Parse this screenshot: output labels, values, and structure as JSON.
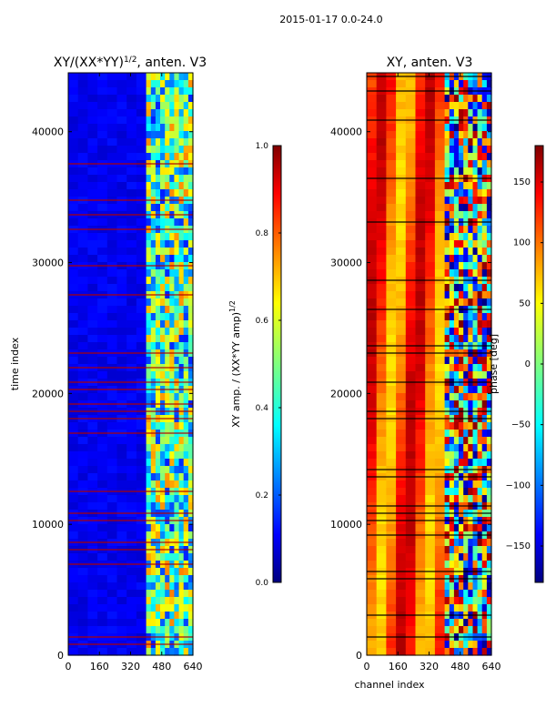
{
  "suptitle": "2015-01-17 0.0-24.0",
  "chart_data": [
    {
      "type": "heatmap",
      "title": "XY/(XX*YY)^{1/2}, anten. V3",
      "title_main": "XY/(XX*YY)",
      "title_sup": "1/2",
      "title_tail": ", anten. V3",
      "xlabel": "",
      "ylabel": "time index",
      "xlim": [
        0,
        640
      ],
      "ylim": [
        0,
        44500
      ],
      "xticks": [
        0,
        160,
        320,
        480,
        640
      ],
      "yticks": [
        0,
        10000,
        20000,
        30000,
        40000
      ],
      "colorbar": {
        "label": "XY amp. / (XX*YY amp)^{1/2}",
        "label_main": "XY amp. / (XX*YY amp)",
        "label_sup": "1/2",
        "range": [
          0.0,
          1.0
        ],
        "ticks": [
          "0.0",
          "0.2",
          "0.4",
          "0.6",
          "0.8",
          "1.0"
        ],
        "colormap": "jet"
      },
      "description_values": {
        "low_channel_amp": 0.1,
        "high_channel_amp": 0.45,
        "high_channel_start": 400
      }
    },
    {
      "type": "heatmap",
      "title": "XY, anten. V3",
      "xlabel": "channel index",
      "ylabel": "",
      "xlim": [
        0,
        640
      ],
      "ylim": [
        0,
        44500
      ],
      "xticks": [
        0,
        160,
        320,
        480,
        640
      ],
      "yticks": [
        0,
        10000,
        20000,
        30000,
        40000
      ],
      "colorbar": {
        "label": "phase [deg]",
        "range": [
          -180,
          180
        ],
        "ticks": [
          "150",
          "100",
          "50",
          "0",
          "−50",
          "−100",
          "−150"
        ],
        "colormap": "jet"
      },
      "description_values": {
        "dominant_phase": 130,
        "high_channel_start": 400
      }
    }
  ],
  "colors": {
    "jet": [
      "#00007f",
      "#0000ff",
      "#007fff",
      "#00ffff",
      "#7fff7f",
      "#ffff00",
      "#ff7f00",
      "#ff0000",
      "#7f0000"
    ]
  }
}
